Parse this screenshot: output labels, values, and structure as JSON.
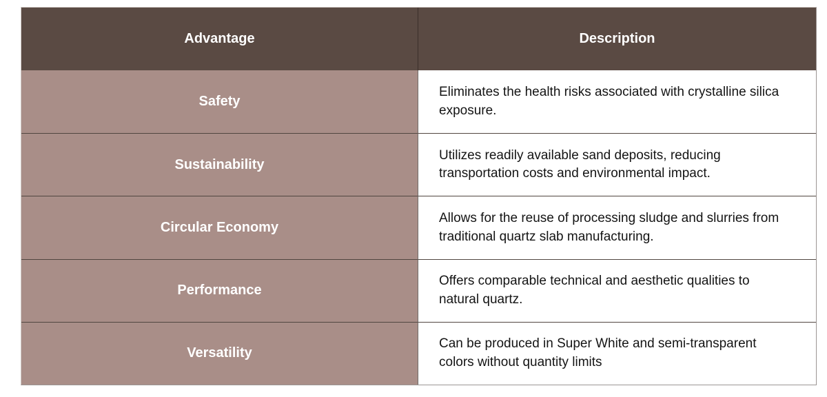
{
  "table": {
    "columns": {
      "advantage_header": "Advantage",
      "description_header": "Description"
    },
    "rows": [
      {
        "advantage": "Safety",
        "description": "Eliminates the health risks associated with crystalline silica exposure."
      },
      {
        "advantage": "Sustainability",
        "description": "Utilizes readily available sand deposits, reducing transportation costs and environmental impact."
      },
      {
        "advantage": "Circular Economy",
        "description": "Allows for the reuse of processing sludge and slurries from traditional quartz slab manufacturing."
      },
      {
        "advantage": "Performance",
        "description": "Offers comparable technical and aesthetic qualities to natural quartz."
      },
      {
        "advantage": "Versatility",
        "description": "Can be produced in Super White and semi-transparent colors without quantity limits"
      }
    ],
    "colors": {
      "header_bg": "#5a4a43",
      "header_text": "#ffffff",
      "advantage_bg": "#a98e88",
      "advantage_text": "#ffffff",
      "description_bg": "#ffffff",
      "description_text": "#141414",
      "row_divider": "#50453f",
      "column_divider": "#6e6a68"
    }
  }
}
